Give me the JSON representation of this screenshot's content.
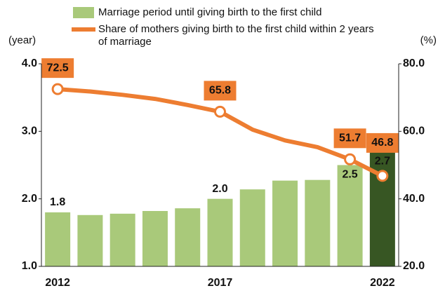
{
  "chart_data": {
    "type": "bar-line",
    "categories": [
      "2012",
      null,
      null,
      null,
      null,
      "2017",
      null,
      null,
      null,
      null,
      "2022"
    ],
    "series": [
      {
        "name": "Marriage period until giving birth to the first child",
        "type": "bar",
        "color": "#a9c97a",
        "highlight_color": "#375623",
        "values": [
          1.8,
          1.76,
          1.78,
          1.82,
          1.86,
          2.0,
          2.14,
          2.27,
          2.28,
          2.5,
          2.7
        ],
        "value_labels": [
          "1.8",
          null,
          null,
          null,
          null,
          "2.0",
          null,
          null,
          null,
          "2.5",
          "2.7"
        ]
      },
      {
        "name": "Share of mothers giving birth to the first child within 2 years of marriage",
        "type": "line",
        "axis": "y2",
        "color": "#ed7d31",
        "values": [
          72.5,
          71.8,
          70.8,
          69.6,
          67.8,
          65.8,
          60.5,
          57.3,
          55.3,
          51.7,
          46.8
        ],
        "value_labels": [
          "72.5",
          null,
          null,
          null,
          null,
          "65.8",
          null,
          null,
          null,
          "51.7",
          "46.8"
        ]
      }
    ],
    "y_label": "(year)",
    "y2_label": "(%)",
    "ylim": [
      1.0,
      4.0
    ],
    "yticks": [
      {
        "value": 1,
        "label": "1.0"
      },
      {
        "value": 2,
        "label": "2.0"
      },
      {
        "value": 3,
        "label": "3.0"
      },
      {
        "value": 4,
        "label": "4.0"
      }
    ],
    "y2lim": [
      20,
      80
    ],
    "y2ticks": [
      {
        "value": 20,
        "label": "20.0"
      },
      {
        "value": 40,
        "label": "40.0"
      },
      {
        "value": 60,
        "label": "60.0"
      },
      {
        "value": 80,
        "label": "80.0"
      }
    ]
  }
}
